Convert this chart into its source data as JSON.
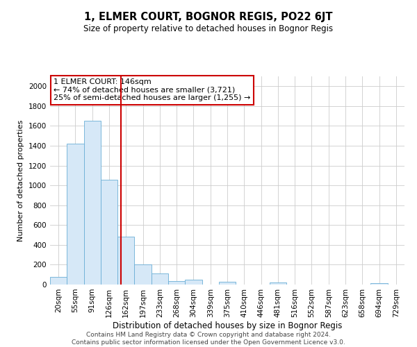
{
  "title": "1, ELMER COURT, BOGNOR REGIS, PO22 6JT",
  "subtitle": "Size of property relative to detached houses in Bognor Regis",
  "xlabel": "Distribution of detached houses by size in Bognor Regis",
  "ylabel": "Number of detached properties",
  "footer_line1": "Contains HM Land Registry data © Crown copyright and database right 2024.",
  "footer_line2": "Contains public sector information licensed under the Open Government Licence v3.0.",
  "annotation_line1": "1 ELMER COURT: 146sqm",
  "annotation_line2": "← 74% of detached houses are smaller (3,721)",
  "annotation_line3": "25% of semi-detached houses are larger (1,255) →",
  "bar_color": "#d6e8f7",
  "bar_edge_color": "#6aaed6",
  "redline_color": "#cc0000",
  "annotation_box_edge": "#cc0000",
  "categories": [
    "20sqm",
    "55sqm",
    "91sqm",
    "126sqm",
    "162sqm",
    "197sqm",
    "233sqm",
    "268sqm",
    "304sqm",
    "339sqm",
    "375sqm",
    "410sqm",
    "446sqm",
    "481sqm",
    "516sqm",
    "552sqm",
    "587sqm",
    "623sqm",
    "658sqm",
    "694sqm",
    "729sqm"
  ],
  "values": [
    80,
    1420,
    1650,
    1060,
    480,
    200,
    110,
    35,
    50,
    0,
    25,
    0,
    0,
    20,
    0,
    0,
    0,
    0,
    0,
    15,
    0
  ],
  "ylim": [
    0,
    2100
  ],
  "yticks": [
    0,
    200,
    400,
    600,
    800,
    1000,
    1200,
    1400,
    1600,
    1800,
    2000
  ],
  "redline_x": 3.72,
  "background_color": "#ffffff",
  "grid_color": "#cccccc",
  "title_fontsize": 10.5,
  "subtitle_fontsize": 8.5,
  "ylabel_fontsize": 8,
  "xlabel_fontsize": 8.5,
  "tick_fontsize": 7.5,
  "annotation_fontsize": 8,
  "footer_fontsize": 6.5
}
